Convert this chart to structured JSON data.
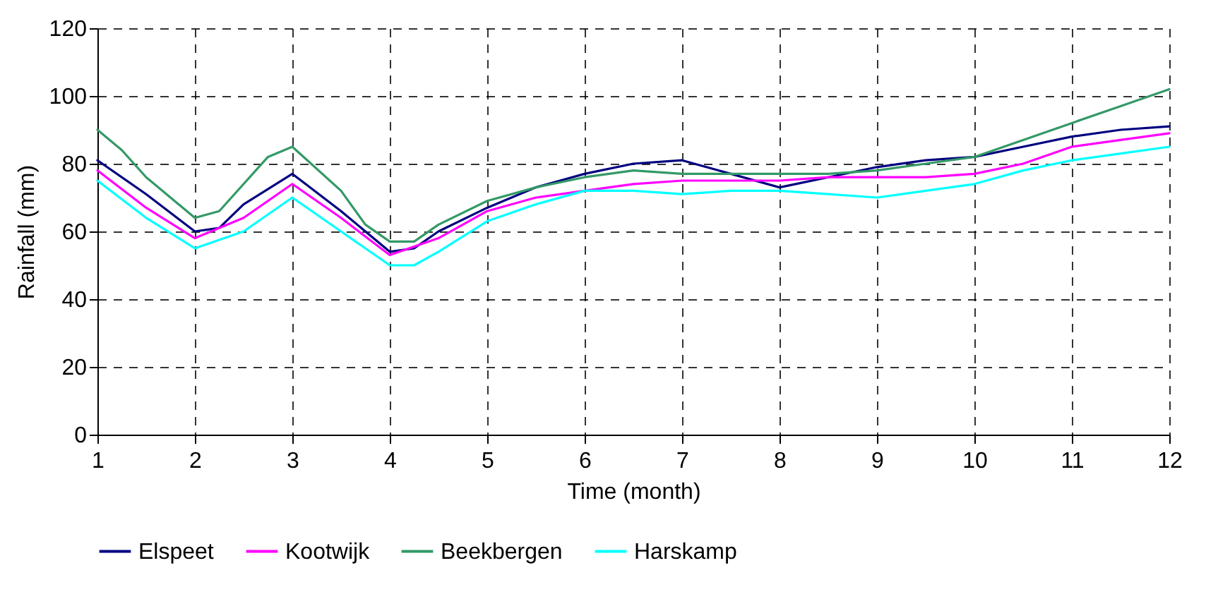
{
  "chart_data": {
    "type": "line",
    "xlabel": "Time (month)",
    "ylabel": "Rainfall (mm)",
    "xlim": [
      1,
      12
    ],
    "xticks": [
      1,
      2,
      3,
      4,
      5,
      6,
      7,
      8,
      9,
      10,
      11,
      12
    ],
    "ylim": [
      0,
      120
    ],
    "yticks": [
      0,
      20,
      40,
      60,
      80,
      100,
      120
    ],
    "grid": true,
    "legend": "bottom",
    "marker": "none",
    "line_style": "solid",
    "series": [
      {
        "name": "Elspeet",
        "color": "#000080",
        "x": [
          1,
          1.5,
          2,
          2.25,
          2.5,
          3,
          3.5,
          4,
          4.25,
          4.5,
          5,
          5.5,
          6,
          6.5,
          7,
          7.5,
          8,
          8.5,
          9,
          9.5,
          10,
          10.5,
          11,
          11.5,
          12
        ],
        "values": [
          81,
          71,
          60,
          61,
          68,
          77,
          66,
          54,
          55,
          60,
          67,
          73,
          77,
          80,
          81,
          77,
          73,
          76,
          79,
          81,
          82,
          85,
          88,
          90,
          91
        ]
      },
      {
        "name": "Kootwijk",
        "color": "#ff00ff",
        "x": [
          1,
          1.5,
          2,
          2.5,
          3,
          3.5,
          4,
          4.5,
          5,
          5.5,
          6,
          6.5,
          7,
          7.5,
          8,
          8.5,
          9,
          9.5,
          10,
          10.5,
          11,
          11.5,
          12
        ],
        "values": [
          78,
          67,
          58,
          64,
          74,
          64,
          53,
          58,
          66,
          70,
          72,
          74,
          75,
          75,
          75,
          76,
          76,
          76,
          77,
          80,
          85,
          87,
          89
        ]
      },
      {
        "name": "Beekbergen",
        "color": "#339966",
        "x": [
          1,
          1.25,
          1.5,
          2,
          2.25,
          2.5,
          2.75,
          3,
          3.5,
          3.75,
          4,
          4.25,
          4.5,
          5,
          5.5,
          6,
          6.5,
          7,
          7.5,
          8,
          8.5,
          9,
          9.5,
          10,
          10.5,
          11,
          11.5,
          12
        ],
        "values": [
          90,
          84,
          76,
          64,
          66,
          74,
          82,
          85,
          72,
          62,
          57,
          57,
          62,
          69,
          73,
          76,
          78,
          77,
          77,
          77,
          77,
          78,
          80,
          82,
          87,
          92,
          97,
          102
        ]
      },
      {
        "name": "Harskamp",
        "color": "#00ffff",
        "x": [
          1,
          1.5,
          2,
          2.5,
          3,
          3.5,
          4,
          4.25,
          4.5,
          5,
          5.5,
          6,
          6.5,
          7,
          7.5,
          8,
          8.5,
          9,
          9.5,
          10,
          10.5,
          11,
          11.5,
          12
        ],
        "values": [
          75,
          64,
          55,
          60,
          70,
          60,
          50,
          50,
          54,
          63,
          68,
          72,
          72,
          71,
          72,
          72,
          71,
          70,
          72,
          74,
          78,
          81,
          83,
          85
        ]
      }
    ]
  }
}
